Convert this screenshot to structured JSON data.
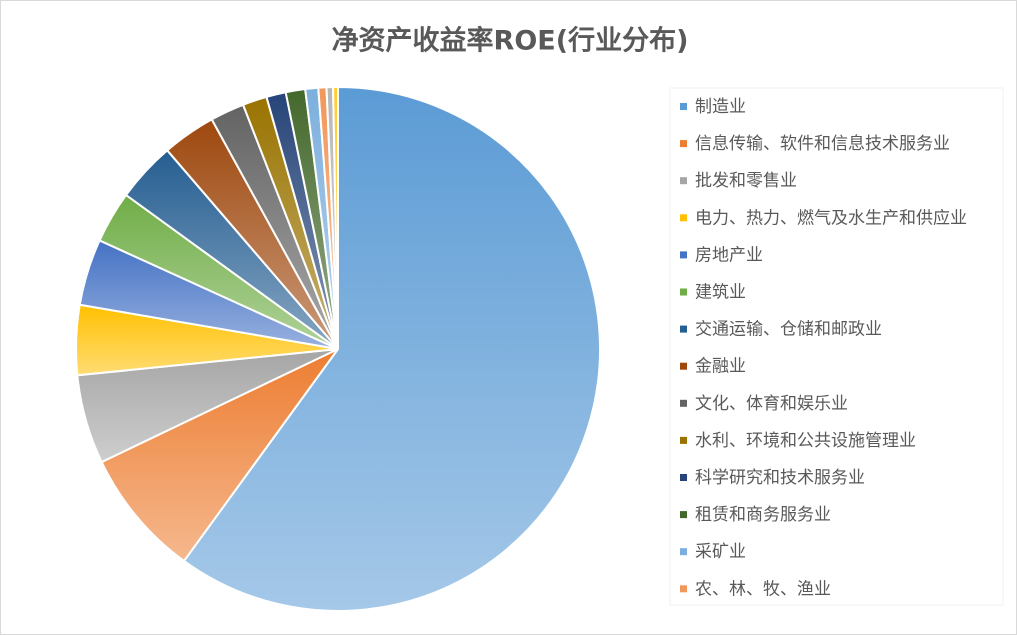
{
  "chart_data": {
    "type": "pie",
    "title": "净资产收益率ROE(行业分布)",
    "categories": [
      "制造业",
      "信息传输、软件和信息技术服务业",
      "批发和零售业",
      "电力、热力、燃气及水生产和供应业",
      "房地产业",
      "建筑业",
      "交通运输、仓储和邮政业",
      "金融业",
      "文化、体育和娱乐业",
      "水利、环境和公共设施管理业",
      "科学研究和技术服务业",
      "租赁和商务服务业",
      "采矿业",
      "农、林、牧、渔业",
      null,
      null
    ],
    "values": [
      60,
      7.9,
      5.5,
      4.3,
      4.1,
      3.2,
      3.7,
      3.3,
      2.1,
      1.5,
      1.2,
      1.2,
      0.8,
      0.5,
      0.4,
      0.3
    ],
    "colors": [
      "#5b9bd5",
      "#ed7d31",
      "#a5a5a5",
      "#ffc000",
      "#4472c4",
      "#70ad47",
      "#255e91",
      "#9e480e",
      "#636363",
      "#997300",
      "#264478",
      "#43682b",
      "#7cafdd",
      "#f1975a",
      "#b7b7b7",
      "#ffcd33"
    ],
    "legend": "right"
  }
}
